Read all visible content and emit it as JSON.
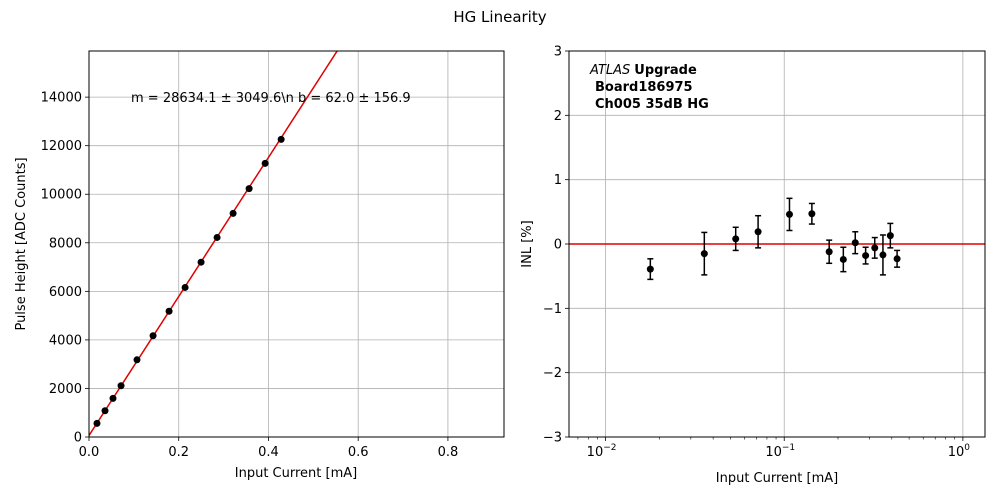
{
  "figure": {
    "suptitle": "HG Linearity"
  },
  "chart_data": [
    {
      "type": "scatter",
      "title": "",
      "xlabel": "Input Current [mA]",
      "ylabel": "Pulse Height [ADC Counts]",
      "xlim": [
        0,
        0.925
      ],
      "ylim": [
        0,
        15900
      ],
      "xscale": "linear",
      "xticks": [
        0.0,
        0.2,
        0.4,
        0.6,
        0.8
      ],
      "xtick_labels": [
        "0.0",
        "0.2",
        "0.4",
        "0.6",
        "0.8"
      ],
      "yticks": [
        0,
        2000,
        4000,
        6000,
        8000,
        10000,
        12000,
        14000
      ],
      "ytick_labels": [
        "0",
        "2000",
        "4000",
        "6000",
        "8000",
        "10000",
        "12000",
        "14000"
      ],
      "grid": true,
      "fit_annotation": "m = 28634.1 ± 3049.6\\n b = 62.0 ± 156.9",
      "fit": {
        "slope": 28634.1,
        "intercept": 62.0,
        "color": "#e00000"
      },
      "series": [
        {
          "marker_color": "#000000",
          "points": [
            {
              "x": 0.0178,
              "y": 560
            },
            {
              "x": 0.0357,
              "y": 1080
            },
            {
              "x": 0.0535,
              "y": 1590
            },
            {
              "x": 0.0714,
              "y": 2110
            },
            {
              "x": 0.107,
              "y": 3180
            },
            {
              "x": 0.1428,
              "y": 4170
            },
            {
              "x": 0.1785,
              "y": 5180
            },
            {
              "x": 0.2142,
              "y": 6160
            },
            {
              "x": 0.2498,
              "y": 7200
            },
            {
              "x": 0.2855,
              "y": 8220
            },
            {
              "x": 0.3212,
              "y": 9210
            },
            {
              "x": 0.3569,
              "y": 10230
            },
            {
              "x": 0.3926,
              "y": 11270
            },
            {
              "x": 0.4283,
              "y": 12260
            }
          ]
        }
      ]
    },
    {
      "type": "scatter",
      "title": "",
      "xlabel": "Input Current [mA]",
      "ylabel": "INL [%]",
      "xlim": [
        0.00624,
        1.33
      ],
      "ylim": [
        -3,
        3
      ],
      "xscale": "log",
      "xticks": [
        0.01,
        0.1,
        1
      ],
      "xtick_labels": [
        "10",
        "10",
        "10"
      ],
      "xtick_exponents": [
        "−2",
        "−1",
        "0"
      ],
      "yticks": [
        -3,
        -2,
        -1,
        0,
        1,
        2,
        3
      ],
      "ytick_labels": [
        "−3",
        "−2",
        "−1",
        "0",
        "1",
        "2",
        "3"
      ],
      "grid": true,
      "reference_line": {
        "y": 0,
        "color": "#e00000"
      },
      "annotation": {
        "italic": "ATLAS",
        "bold_word": "Upgrade",
        "lines": [
          "Board186975",
          "Ch005 35dB HG"
        ]
      },
      "series": [
        {
          "marker_color": "#000000",
          "points": [
            {
              "x": 0.0178,
              "y": -0.39,
              "err": 0.16
            },
            {
              "x": 0.0357,
              "y": -0.15,
              "err": 0.33
            },
            {
              "x": 0.0535,
              "y": 0.08,
              "err": 0.18
            },
            {
              "x": 0.0714,
              "y": 0.19,
              "err": 0.25
            },
            {
              "x": 0.107,
              "y": 0.46,
              "err": 0.25
            },
            {
              "x": 0.1428,
              "y": 0.47,
              "err": 0.16
            },
            {
              "x": 0.1785,
              "y": -0.12,
              "err": 0.18
            },
            {
              "x": 0.2142,
              "y": -0.24,
              "err": 0.19
            },
            {
              "x": 0.2498,
              "y": 0.02,
              "err": 0.17
            },
            {
              "x": 0.2855,
              "y": -0.18,
              "err": 0.13
            },
            {
              "x": 0.3212,
              "y": -0.06,
              "err": 0.16
            },
            {
              "x": 0.3569,
              "y": -0.17,
              "err": 0.31
            },
            {
              "x": 0.3926,
              "y": 0.13,
              "err": 0.19
            },
            {
              "x": 0.4283,
              "y": -0.23,
              "err": 0.13
            }
          ]
        }
      ]
    }
  ]
}
